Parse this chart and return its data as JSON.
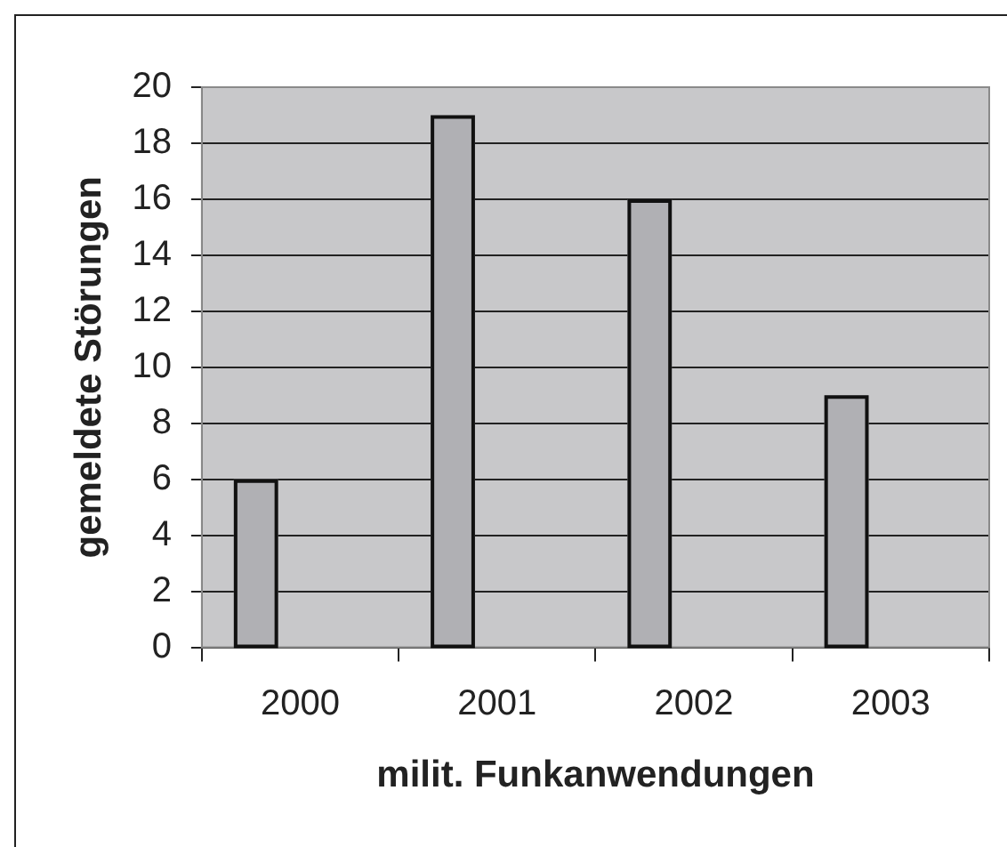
{
  "chart_data": {
    "type": "bar",
    "xlabel": "milit. Funkanwendungen",
    "ylabel": "gemeldete Störungen",
    "categories": [
      "2000",
      "2001",
      "2002",
      "2003"
    ],
    "values": [
      6,
      19,
      16,
      9
    ],
    "color": "#b0b0b4",
    "ylim": [
      0,
      20
    ],
    "yticks": [
      0,
      2,
      4,
      6,
      8,
      10,
      12,
      14,
      16,
      18,
      20
    ],
    "grid": "y"
  }
}
